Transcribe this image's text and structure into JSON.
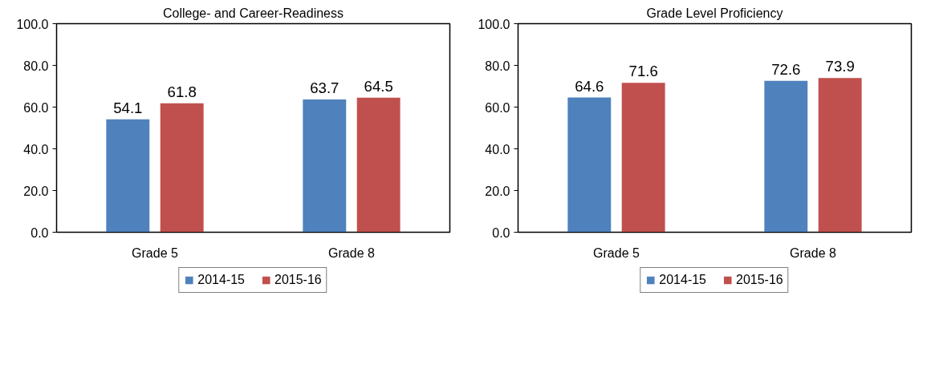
{
  "chart_data": [
    {
      "type": "bar",
      "title": "College- and Career-Readiness",
      "categories": [
        "Grade 5",
        "Grade 8"
      ],
      "series": [
        {
          "name": "2014-15",
          "color": "#4f81bd",
          "values": [
            54.1,
            63.7
          ]
        },
        {
          "name": "2015-16",
          "color": "#c0504d",
          "values": [
            61.8,
            64.5
          ]
        }
      ],
      "ylim": [
        0,
        100
      ],
      "yticks": [
        {
          "value": 0,
          "label": "0.0"
        },
        {
          "value": 20,
          "label": "20.0"
        },
        {
          "value": 40,
          "label": "40.0"
        },
        {
          "value": 60,
          "label": "60.0"
        },
        {
          "value": 80,
          "label": "80.0"
        },
        {
          "value": 100,
          "label": "100.0"
        }
      ],
      "data_labels": true,
      "legend": "bottom"
    },
    {
      "type": "bar",
      "title": "Grade Level Proficiency",
      "categories": [
        "Grade 5",
        "Grade 8"
      ],
      "series": [
        {
          "name": "2014-15",
          "color": "#4f81bd",
          "values": [
            64.6,
            72.6
          ]
        },
        {
          "name": "2015-16",
          "color": "#c0504d",
          "values": [
            71.6,
            73.9
          ]
        }
      ],
      "ylim": [
        0,
        100
      ],
      "yticks": [
        {
          "value": 0,
          "label": "0.0"
        },
        {
          "value": 20,
          "label": "20.0"
        },
        {
          "value": 40,
          "label": "40.0"
        },
        {
          "value": 60,
          "label": "60.0"
        },
        {
          "value": 80,
          "label": "80.0"
        },
        {
          "value": 100,
          "label": "100.0"
        }
      ],
      "data_labels": true,
      "legend": "bottom"
    }
  ]
}
